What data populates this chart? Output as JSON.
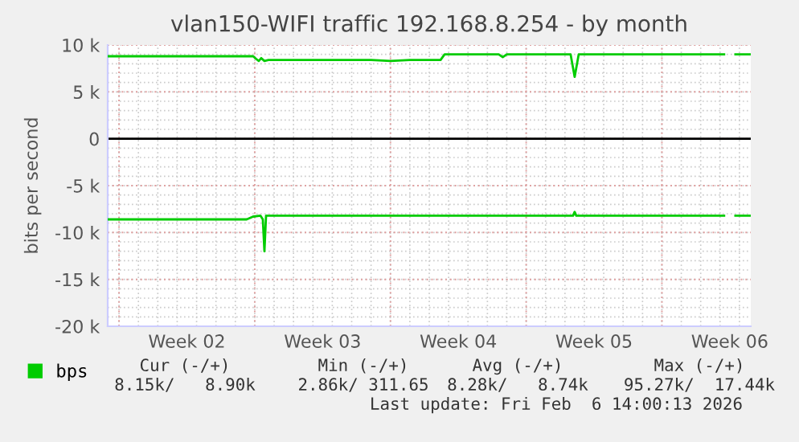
{
  "chart_data": {
    "type": "line",
    "title": "vlan150-WIFI traffic 192.168.8.254 - by month",
    "ylabel": "bits per second",
    "xlim": [
      "2026-01-04T10:00",
      "2026-02-06T14:00"
    ],
    "ylim": [
      -20000,
      10000
    ],
    "xticks": [
      {
        "value": "2026-01-05",
        "label": null
      },
      {
        "value": "2026-01-08T12:00",
        "label": "Week 02"
      },
      {
        "value": "2026-01-12",
        "label": null
      },
      {
        "value": "2026-01-15T12:00",
        "label": "Week 03"
      },
      {
        "value": "2026-01-19",
        "label": null
      },
      {
        "value": "2026-01-22T12:00",
        "label": "Week 04"
      },
      {
        "value": "2026-01-26",
        "label": null
      },
      {
        "value": "2026-01-29T12:00",
        "label": "Week 05"
      },
      {
        "value": "2026-02-02",
        "label": null
      },
      {
        "value": "2026-02-05T12:00",
        "label": "Week 06"
      }
    ],
    "yticks": [
      {
        "value": -20000,
        "label": "-20 k"
      },
      {
        "value": -15000,
        "label": "-15 k"
      },
      {
        "value": -10000,
        "label": "-10 k"
      },
      {
        "value": -5000,
        "label": "-5 k"
      },
      0,
      {
        "value": 5000,
        "label": "5 k"
      },
      {
        "value": 10000,
        "label": "10 k"
      }
    ],
    "grid": true,
    "legend": "bottom left",
    "marker": "none",
    "line_style": "solid",
    "ref_lines": [
      {
        "axis": "y",
        "value": 0,
        "label": null,
        "color": "#000000"
      }
    ],
    "series": [
      {
        "name": "bps",
        "color": "#00cc00",
        "x": [
          "2026-01-04T10:00",
          "2026-01-11T22:00",
          "2026-01-12T02:00",
          "2026-01-12T05:00",
          "2026-01-12T08:00",
          "2026-01-12T12:00",
          "2026-01-12T17:00",
          "2026-01-15T00:00",
          "2026-01-18T00:00",
          "2026-01-19T00:00",
          "2026-01-20T00:00",
          "2026-01-21T14:00",
          "2026-01-21T19:00",
          "2026-01-24T14:00",
          "2026-01-24T19:00",
          "2026-01-25T00:00",
          "2026-01-28T07:00",
          "2026-01-28T12:00",
          "2026-01-28T17:00",
          "2026-02-05T05:00",
          "2026-02-05T12:00",
          "2026-02-05T19:00",
          "2026-02-06T14:00"
        ],
        "values": [
          8800,
          8800,
          8500,
          8300,
          8600,
          8300,
          8400,
          8400,
          8400,
          8300,
          8400,
          8400,
          9000,
          9000,
          8700,
          9000,
          9000,
          6600,
          9000,
          9000,
          null,
          9000,
          9000
        ]
      },
      {
        "color": "#00cc00",
        "x": [
          "2026-01-04T10:00",
          "2026-01-11T14:00",
          "2026-01-11T22:00",
          "2026-01-12T07:00",
          "2026-01-12T10:00",
          "2026-01-12T12:00",
          "2026-01-12T14:00",
          "2026-01-24T14:00",
          "2026-01-28T10:00",
          "2026-01-28T12:00",
          "2026-01-28T14:00",
          "2026-02-05T05:00",
          "2026-02-05T12:00",
          "2026-02-05T19:00",
          "2026-02-06T14:00"
        ],
        "values": [
          -8600,
          -8600,
          -8300,
          -8200,
          -8600,
          -12000,
          -8200,
          -8200,
          -8200,
          -7800,
          -8200,
          -8200,
          null,
          -8200,
          -8200
        ]
      }
    ],
    "annotations": [
      "Cur (-/+)",
      "Min (-/+)",
      "Avg (-/+)",
      "Max (-/+)",
      "8.15k/   8.90k",
      "2.86k/ 311.65",
      "8.28k/   8.74k",
      "95.27k/  17.44k",
      "Last update: Fri Feb  6 14:00:13 2026"
    ]
  }
}
